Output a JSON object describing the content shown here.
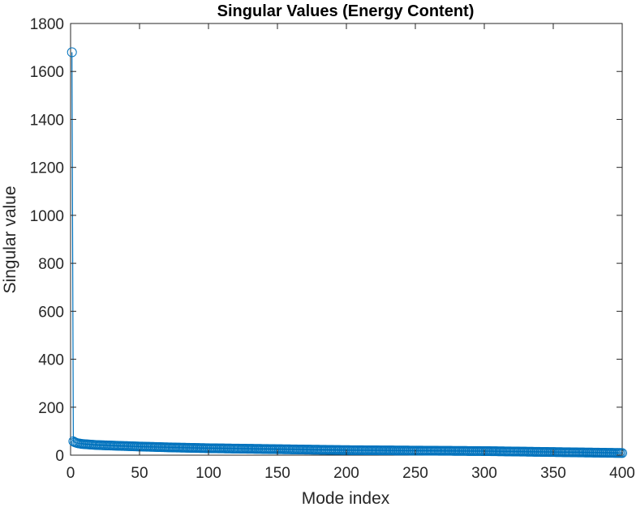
{
  "chart_data": {
    "type": "line",
    "title": "Singular Values (Energy Content)",
    "xlabel": "Mode index",
    "ylabel": "Singular value",
    "xlim": [
      0,
      400
    ],
    "ylim": [
      0,
      1800
    ],
    "xticks": [
      0,
      50,
      100,
      150,
      200,
      250,
      300,
      350,
      400
    ],
    "yticks": [
      0,
      200,
      400,
      600,
      800,
      1000,
      1200,
      1400,
      1600,
      1800
    ],
    "grid": false,
    "legend": "none",
    "marker": "circle",
    "n_points": 400,
    "series": [
      {
        "color": "#0072BD",
        "x": [
          1,
          2,
          3,
          4,
          5,
          6,
          7,
          8,
          10,
          15,
          20,
          30,
          40,
          50,
          75,
          100,
          125,
          150,
          175,
          200,
          225,
          250,
          275,
          300,
          325,
          350,
          375,
          400
        ],
        "y": [
          1680,
          58,
          54,
          52,
          50,
          49,
          48,
          47,
          46,
          44,
          42,
          40,
          38,
          36,
          32,
          29,
          27,
          25,
          23,
          21,
          20,
          19,
          18,
          17,
          15,
          13,
          11,
          9
        ]
      }
    ]
  }
}
